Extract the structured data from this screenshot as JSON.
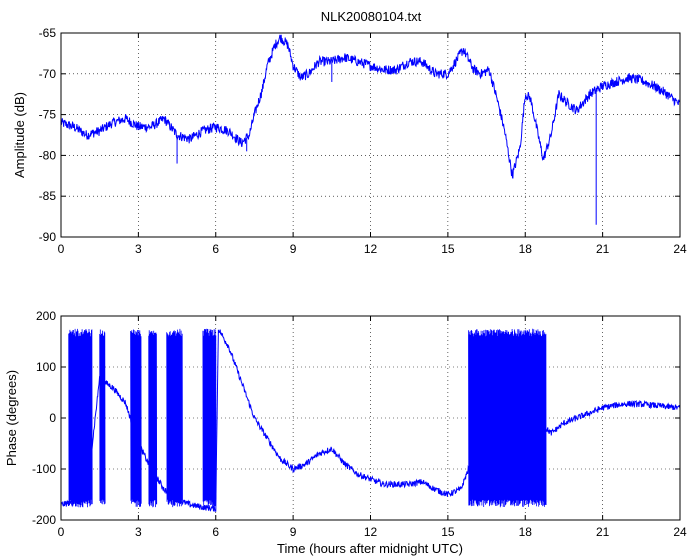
{
  "figure_title": "NLK20080104.txt",
  "colors": {
    "line": "#0000ff",
    "axes": "#000000",
    "grid": "#000000",
    "background": "#ffffff"
  },
  "chart_data": [
    {
      "type": "line",
      "title": "NLK20080104.txt",
      "xlabel": "",
      "ylabel": "Amplitude (dB)",
      "xlim": [
        0,
        24
      ],
      "ylim": [
        -90,
        -65
      ],
      "xticks": [
        0,
        3,
        6,
        9,
        12,
        15,
        18,
        21,
        24
      ],
      "yticks": [
        -90,
        -85,
        -80,
        -75,
        -70,
        -65
      ],
      "grid": true,
      "noise": 0.6,
      "series": [
        {
          "x": [
            0,
            0.5,
            1,
            1.5,
            2,
            2.5,
            3,
            3.5,
            4,
            4.5,
            5,
            5.5,
            6,
            6.5,
            7,
            7.3,
            7.5,
            7.8,
            8,
            8.3,
            8.5,
            8.8,
            9,
            9.3,
            9.6,
            10,
            10.5,
            11,
            11.5,
            12,
            12.5,
            13,
            13.5,
            14,
            14.5,
            15,
            15.3,
            15.6,
            16,
            16.3,
            16.6,
            16.9,
            17.2,
            17.5,
            17.8,
            18,
            18.2,
            18.4,
            18.7,
            19,
            19.3,
            19.6,
            20,
            20.5,
            21,
            21.5,
            22,
            22.5,
            23,
            23.5,
            24
          ],
          "y": [
            -76,
            -76.5,
            -77.5,
            -77,
            -76,
            -75.5,
            -76.5,
            -76.5,
            -75.5,
            -77.5,
            -78,
            -77,
            -76.5,
            -77,
            -78.5,
            -77.5,
            -75,
            -72,
            -69,
            -66.5,
            -65.5,
            -66.5,
            -69,
            -70.5,
            -70,
            -68.5,
            -68.5,
            -68,
            -68.5,
            -69,
            -69.5,
            -69.5,
            -68.5,
            -68.5,
            -70,
            -70,
            -68.5,
            -67,
            -69.5,
            -70,
            -69.5,
            -73,
            -77,
            -82.5,
            -79,
            -72.5,
            -73,
            -76,
            -80.5,
            -77.5,
            -72.5,
            -73.5,
            -74.5,
            -72.5,
            -71.5,
            -71,
            -70.5,
            -70.8,
            -71.5,
            -72.5,
            -73.8
          ]
        }
      ],
      "spikes": [
        {
          "x": 20.75,
          "y": -88.5
        },
        {
          "x": 4.5,
          "y": -81
        },
        {
          "x": 7.2,
          "y": -79.5
        },
        {
          "x": 10.5,
          "y": -71
        }
      ]
    },
    {
      "type": "line",
      "title": "",
      "xlabel": "Time (hours after midnight UTC)",
      "ylabel": "Phase (degrees)",
      "xlim": [
        0,
        24
      ],
      "ylim": [
        -200,
        200
      ],
      "xticks": [
        0,
        3,
        6,
        9,
        12,
        15,
        18,
        21,
        24
      ],
      "yticks": [
        -200,
        -100,
        0,
        100,
        200
      ],
      "grid": true,
      "noise": 6,
      "series": [
        {
          "x": [
            0,
            0.5,
            1,
            1.5,
            1.7,
            2,
            2.5,
            3,
            3.5,
            4,
            4.5,
            5,
            5.5,
            6,
            6.1,
            6.5,
            7,
            7.5,
            8,
            8.5,
            9,
            9.5,
            10,
            10.5,
            11,
            11.5,
            12,
            12.5,
            13,
            13.5,
            14,
            14.5,
            15,
            15.5,
            15.8,
            16,
            17,
            18,
            18.5,
            18.8,
            19,
            19.5,
            20,
            20.5,
            21,
            21.5,
            22,
            22.5,
            23,
            23.5,
            24
          ],
          "y": [
            -170,
            -165,
            -150,
            80,
            70,
            60,
            30,
            -50,
            -100,
            -140,
            -160,
            -170,
            -175,
            -178,
            175,
            140,
            70,
            0,
            -40,
            -80,
            -100,
            -90,
            -70,
            -60,
            -90,
            -110,
            -120,
            -130,
            -130,
            -130,
            -125,
            -140,
            -150,
            -140,
            -100,
            -60,
            -40,
            -30,
            -20,
            -20,
            -30,
            -10,
            0,
            10,
            20,
            25,
            28,
            27,
            25,
            22,
            20
          ]
        }
      ],
      "wraps": [
        [
          0.3,
          1.2
        ],
        [
          1.5,
          1.7
        ],
        [
          2.7,
          3.1
        ],
        [
          3.4,
          3.7
        ],
        [
          4.1,
          4.7
        ],
        [
          5.5,
          6.0
        ],
        [
          15.8,
          18.8
        ]
      ]
    }
  ]
}
